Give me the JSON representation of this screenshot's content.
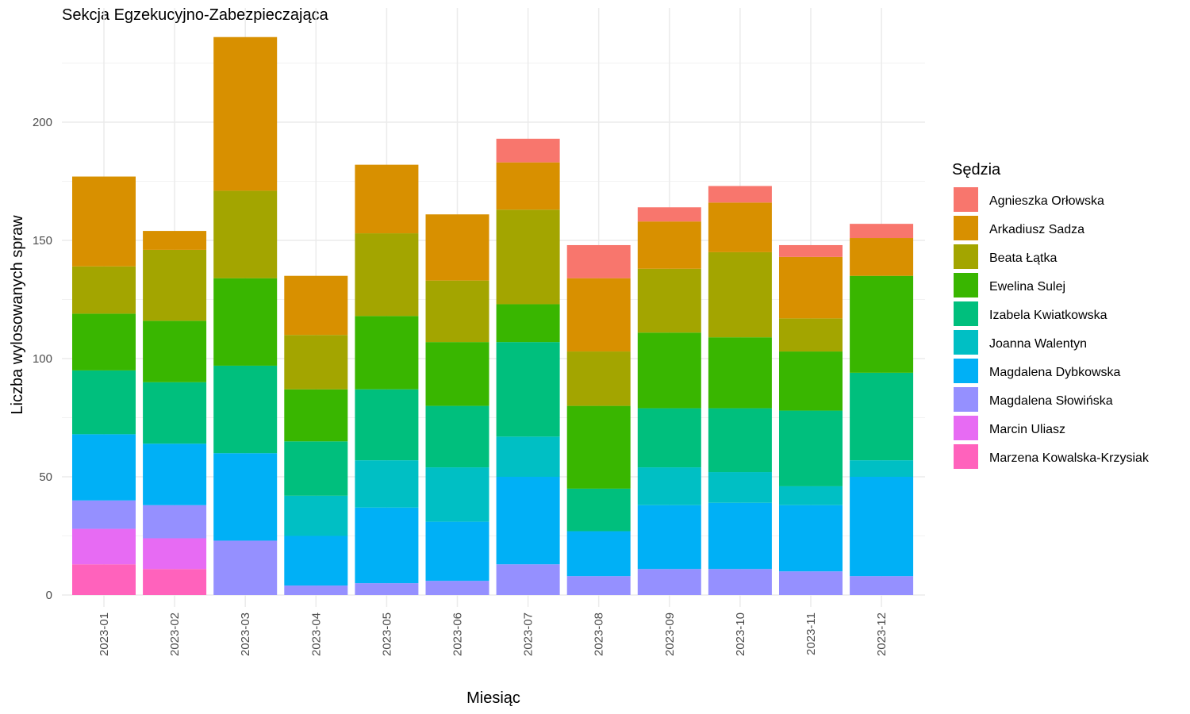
{
  "chart_data": {
    "type": "bar",
    "stacked": true,
    "title": "Sekcja Egzekucyjno-Zabezpieczająca",
    "xlabel": "Miesiąc",
    "ylabel": "Liczba wylosowanych spraw",
    "ylim": [
      0,
      240
    ],
    "yticks": [
      0,
      50,
      100,
      150,
      200
    ],
    "grid": true,
    "legend_title": "Sędzia",
    "legend_position": "right",
    "categories": [
      "2023-01",
      "2023-02",
      "2023-03",
      "2023-04",
      "2023-05",
      "2023-06",
      "2023-07",
      "2023-08",
      "2023-09",
      "2023-10",
      "2023-11",
      "2023-12"
    ],
    "series": [
      {
        "name": "Agnieszka Orłowska",
        "color": "#F8766D",
        "values": [
          0,
          0,
          0,
          0,
          0,
          0,
          10,
          14,
          6,
          7,
          5,
          6
        ]
      },
      {
        "name": "Arkadiusz Sadza",
        "color": "#D89000",
        "values": [
          38,
          8,
          65,
          25,
          29,
          28,
          20,
          31,
          20,
          21,
          26,
          16
        ]
      },
      {
        "name": "Beata Łątka",
        "color": "#A3A500",
        "values": [
          20,
          30,
          37,
          23,
          35,
          26,
          40,
          23,
          27,
          36,
          14,
          0
        ]
      },
      {
        "name": "Ewelina Sulej",
        "color": "#39B600",
        "values": [
          24,
          26,
          37,
          22,
          31,
          27,
          16,
          35,
          32,
          30,
          25,
          41
        ]
      },
      {
        "name": "Izabela Kwiatkowska",
        "color": "#00BF7D",
        "values": [
          27,
          26,
          37,
          23,
          30,
          26,
          40,
          18,
          25,
          27,
          32,
          37
        ]
      },
      {
        "name": "Joanna Walentyn",
        "color": "#00BFC4",
        "values": [
          0,
          0,
          0,
          17,
          20,
          23,
          17,
          0,
          16,
          13,
          8,
          7
        ]
      },
      {
        "name": "Magdalena Dybkowska",
        "color": "#00B0F6",
        "values": [
          28,
          26,
          37,
          21,
          32,
          25,
          37,
          19,
          27,
          28,
          28,
          42
        ]
      },
      {
        "name": "Magdalena Słowińska",
        "color": "#9590FF",
        "values": [
          12,
          14,
          23,
          4,
          5,
          6,
          13,
          8,
          11,
          11,
          10,
          8
        ]
      },
      {
        "name": "Marcin Uliasz",
        "color": "#E76BF3",
        "values": [
          15,
          13,
          0,
          0,
          0,
          0,
          0,
          0,
          0,
          0,
          0,
          0
        ]
      },
      {
        "name": "Marzena Kowalska-Krzysiak",
        "color": "#FF62BC",
        "values": [
          13,
          11,
          0,
          0,
          0,
          0,
          0,
          0,
          0,
          0,
          0,
          0
        ]
      }
    ]
  }
}
